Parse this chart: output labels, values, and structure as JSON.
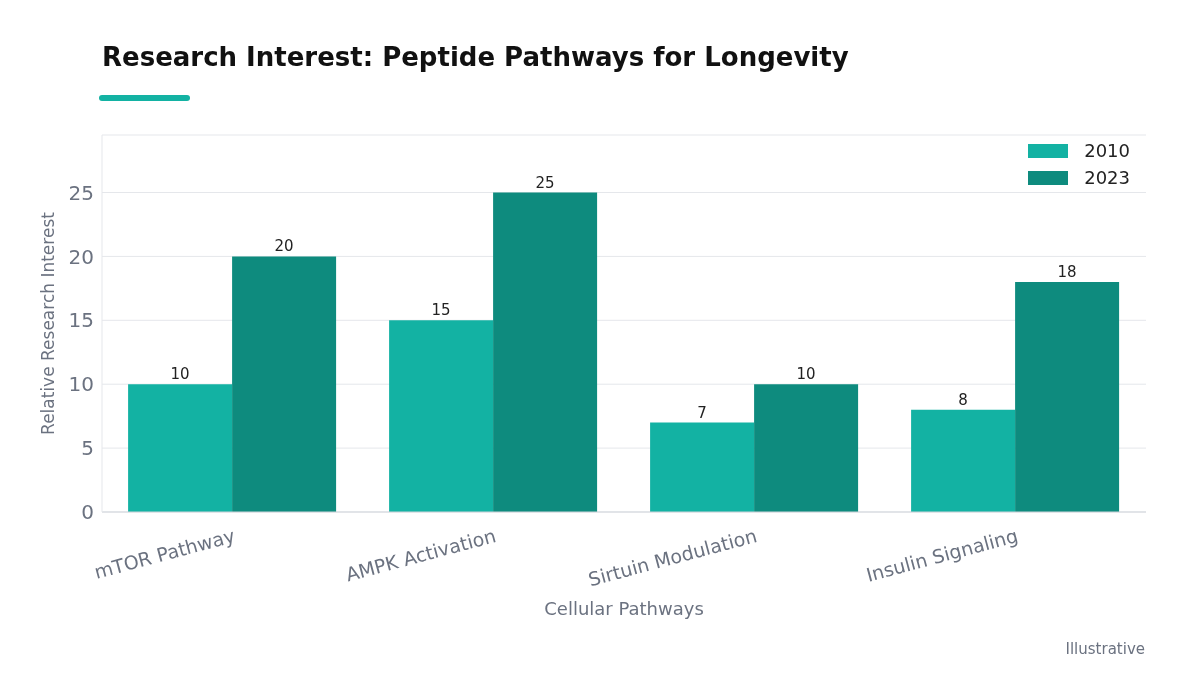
{
  "chart_data": {
    "type": "bar",
    "title": "Research Interest: Peptide Pathways for Longevity",
    "xlabel": "Cellular Pathways",
    "ylabel": "Relative Research Interest",
    "categories": [
      "mTOR Pathway",
      "AMPK Activation",
      "Sirtuin Modulation",
      "Insulin Signaling"
    ],
    "series": [
      {
        "name": "2010",
        "color": "#13b2a3",
        "values": [
          10,
          15,
          7,
          8
        ]
      },
      {
        "name": "2023",
        "color": "#0e8b7e",
        "values": [
          20,
          25,
          10,
          18
        ]
      }
    ],
    "ylim": [
      0,
      29.5
    ],
    "yticks": [
      0,
      5,
      10,
      15,
      20,
      25
    ],
    "grid": "y",
    "legend": "top right",
    "data_labels": true,
    "annotations": [
      "Illustrative"
    ]
  }
}
